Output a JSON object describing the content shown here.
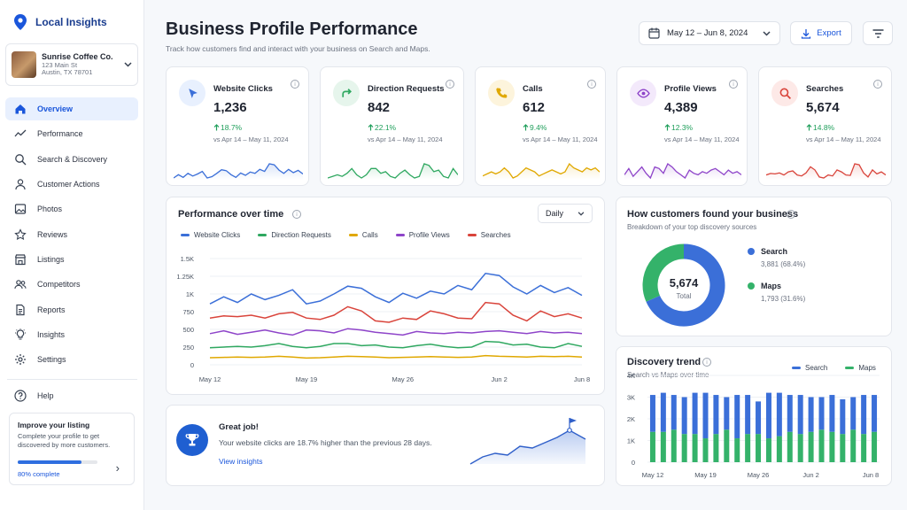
{
  "app": {
    "name": "Local Insights"
  },
  "business": {
    "name": "Sunrise Coffee Co.",
    "address_line1": "123 Main St",
    "address_line2": "Austin, TX 78701"
  },
  "nav": [
    {
      "label": "Overview",
      "icon": "home-icon",
      "active": true
    },
    {
      "label": "Performance",
      "icon": "trend-icon"
    },
    {
      "label": "Search & Discovery",
      "icon": "search-icon"
    },
    {
      "label": "Customer Actions",
      "icon": "user-icon"
    },
    {
      "label": "Photos",
      "icon": "image-icon"
    },
    {
      "label": "Reviews",
      "icon": "star-icon"
    },
    {
      "label": "Listings",
      "icon": "store-icon"
    },
    {
      "label": "Competitors",
      "icon": "people-icon"
    },
    {
      "label": "Reports",
      "icon": "document-icon"
    },
    {
      "label": "Insights",
      "icon": "lightbulb-icon"
    },
    {
      "label": "Settings",
      "icon": "gear-icon"
    }
  ],
  "help_label": "Help",
  "improve": {
    "title": "Improve your listing",
    "text": "Complete your profile to get discovered by more customers.",
    "progress": 0.8,
    "progress_label": "80% complete"
  },
  "header": {
    "title": "Business Profile Performance",
    "subtitle": "Track how customers find and interact with your business on Search and Maps.",
    "date_range": "May 12 – Jun 8, 2024",
    "export_label": "Export"
  },
  "metrics": [
    {
      "name": "Website Clicks",
      "value": "1,236",
      "change": "18.7%",
      "comparison": "vs Apr 14 – May 11, 2024",
      "color": "#3b6fd8",
      "bg": "#e8f0fe",
      "icon": "cursor-icon"
    },
    {
      "name": "Direction Requests",
      "value": "842",
      "change": "22.1%",
      "comparison": "vs Apr 14 – May 11, 2024",
      "color": "#2fa860",
      "bg": "#e6f5ec",
      "icon": "directions-icon"
    },
    {
      "name": "Calls",
      "value": "612",
      "change": "9.4%",
      "comparison": "vs Apr 14 – May 11, 2024",
      "color": "#e0a800",
      "bg": "#fdf4dc",
      "icon": "phone-icon"
    },
    {
      "name": "Profile Views",
      "value": "4,389",
      "change": "12.3%",
      "comparison": "vs Apr 14 – May 11, 2024",
      "color": "#8e44c9",
      "bg": "#f3e9fb",
      "icon": "eye-icon"
    },
    {
      "name": "Searches",
      "value": "5,674",
      "change": "14.8%",
      "comparison": "vs Apr 14 – May 11, 2024",
      "color": "#d9443b",
      "bg": "#fde9e7",
      "icon": "search-icon"
    }
  ],
  "performance": {
    "title": "Performance over time",
    "period": "Daily"
  },
  "discovery": {
    "title": "How customers found your business",
    "subtitle": "Breakdown of your top discovery sources",
    "total_value": "5,674",
    "total_label": "Total",
    "sources": [
      {
        "name": "Search",
        "detail": "3,881 (68.4%)",
        "fraction": 0.684,
        "color": "#3b6fd8"
      },
      {
        "name": "Maps",
        "detail": "1,793 (31.6%)",
        "fraction": 0.316,
        "color": "#34b26a"
      }
    ]
  },
  "trend": {
    "title": "Discovery trend",
    "subtitle": "Search vs Maps over time"
  },
  "banner": {
    "title": "Great job!",
    "text": "Your website clicks are 18.7% higher than the previous 28 days.",
    "link": "View insights"
  },
  "chart_data": [
    {
      "type": "line",
      "title": "Performance over time",
      "x": [
        "May 12",
        "May 13",
        "May 14",
        "May 15",
        "May 16",
        "May 17",
        "May 18",
        "May 19",
        "May 20",
        "May 21",
        "May 22",
        "May 23",
        "May 24",
        "May 25",
        "May 26",
        "May 27",
        "May 28",
        "May 29",
        "May 30",
        "May 31",
        "Jun 1",
        "Jun 2",
        "Jun 3",
        "Jun 4",
        "Jun 5",
        "Jun 6",
        "Jun 7",
        "Jun 8"
      ],
      "x_tick_labels": [
        "May 12",
        "May 19",
        "May 26",
        "Jun 2",
        "Jun 8"
      ],
      "y_tick_labels": [
        "0",
        "250",
        "500",
        "750",
        "1K",
        "1.25K",
        "1.5K"
      ],
      "ylim": [
        0,
        1500
      ],
      "series": [
        {
          "name": "Website Clicks",
          "color": "#3b6fd8",
          "values": [
            860,
            960,
            880,
            1000,
            920,
            980,
            1060,
            860,
            900,
            1000,
            1110,
            1080,
            960,
            880,
            1010,
            940,
            1040,
            1000,
            1120,
            1060,
            1290,
            1260,
            1100,
            1000,
            1120,
            1020,
            1090,
            980
          ]
        },
        {
          "name": "Direction Requests",
          "color": "#2fa860",
          "values": [
            240,
            250,
            260,
            250,
            270,
            300,
            260,
            240,
            260,
            300,
            300,
            270,
            280,
            250,
            240,
            270,
            290,
            260,
            240,
            250,
            330,
            320,
            280,
            290,
            250,
            240,
            300,
            260
          ]
        },
        {
          "name": "Calls",
          "color": "#e0a800",
          "values": [
            100,
            105,
            110,
            105,
            110,
            120,
            110,
            95,
            100,
            110,
            120,
            115,
            110,
            100,
            105,
            110,
            115,
            110,
            105,
            110,
            130,
            120,
            115,
            110,
            120,
            115,
            120,
            110
          ]
        },
        {
          "name": "Profile Views",
          "color": "#8e44c9",
          "values": [
            440,
            480,
            430,
            460,
            490,
            450,
            420,
            490,
            480,
            450,
            510,
            490,
            460,
            440,
            420,
            470,
            450,
            440,
            460,
            450,
            470,
            480,
            460,
            440,
            470,
            450,
            460,
            440
          ]
        },
        {
          "name": "Searches",
          "color": "#d9443b",
          "values": [
            660,
            690,
            680,
            700,
            660,
            720,
            740,
            660,
            640,
            700,
            820,
            760,
            620,
            600,
            660,
            640,
            760,
            720,
            660,
            650,
            880,
            860,
            700,
            620,
            760,
            680,
            720,
            660
          ]
        }
      ]
    },
    {
      "type": "pie",
      "title": "How customers found your business",
      "categories": [
        "Search",
        "Maps"
      ],
      "values": [
        3881,
        1793
      ]
    },
    {
      "type": "bar",
      "title": "Discovery trend",
      "x_tick_labels": [
        "May 12",
        "May 19",
        "May 26",
        "Jun 2",
        "Jun 8"
      ],
      "y_tick_labels": [
        "0",
        "1K",
        "2K",
        "3K",
        "4K"
      ],
      "ylim": [
        0,
        4000
      ],
      "series": [
        {
          "name": "Search",
          "color": "#3b6fd8",
          "values": [
            1700,
            1800,
            1600,
            1700,
            1900,
            2100,
            1800,
            1500,
            2000,
            1800,
            1500,
            2100,
            2000,
            1700,
            1800,
            1600,
            1500,
            1700,
            1600,
            1500,
            1800,
            1700
          ]
        },
        {
          "name": "Maps",
          "color": "#34b26a",
          "values": [
            1400,
            1400,
            1500,
            1300,
            1300,
            1100,
            1300,
            1500,
            1100,
            1300,
            1300,
            1100,
            1200,
            1400,
            1300,
            1400,
            1500,
            1400,
            1300,
            1500,
            1300,
            1400
          ]
        }
      ]
    }
  ]
}
